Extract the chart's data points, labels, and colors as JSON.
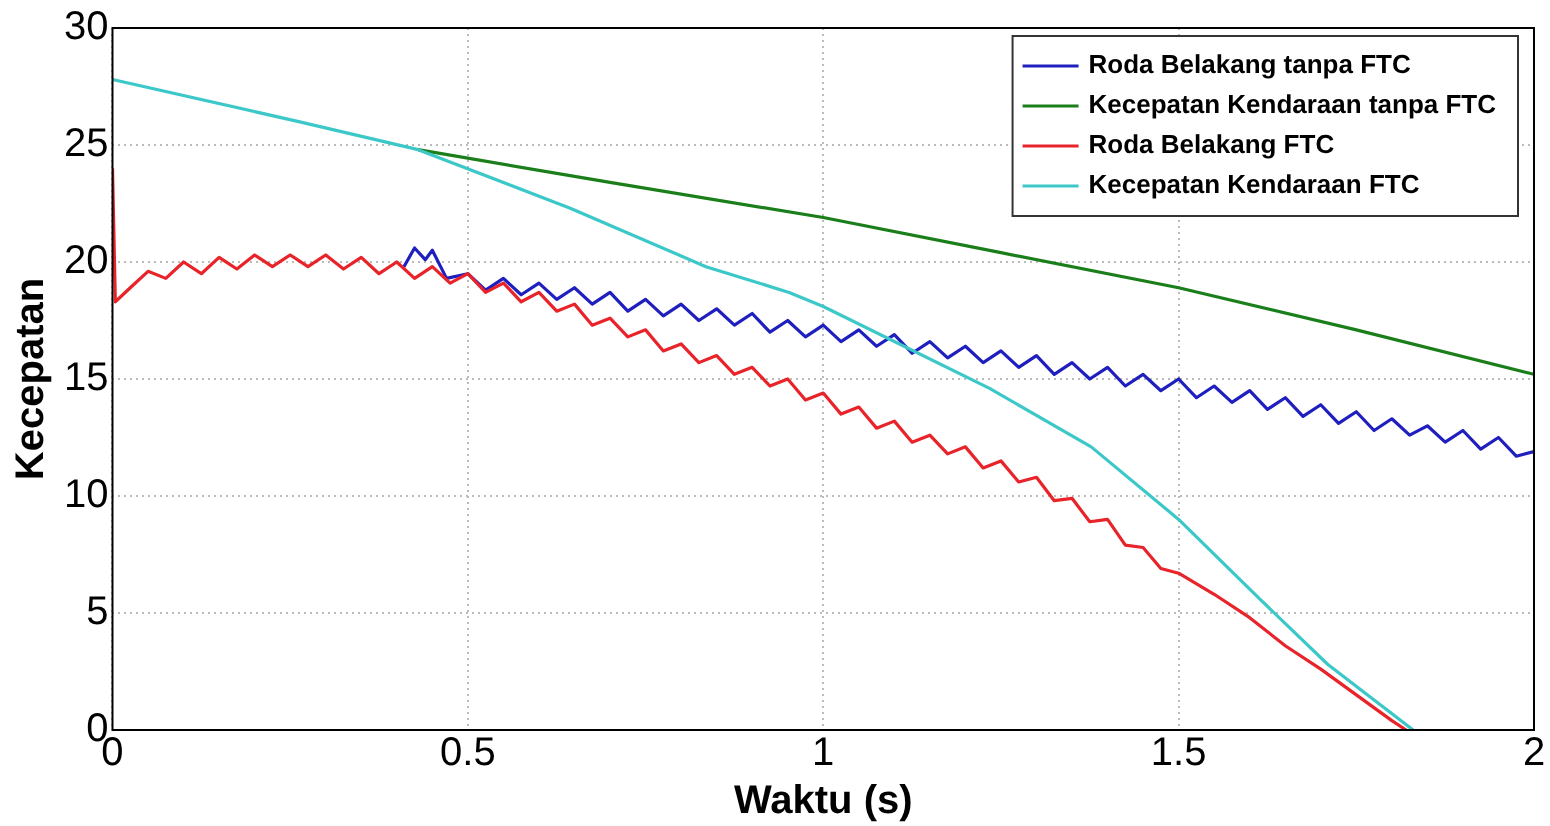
{
  "chart_data": {
    "type": "line",
    "xlabel": "Waktu (s)",
    "ylabel": "Kecepatan",
    "xlim": [
      0,
      2
    ],
    "xticks": [
      0,
      0.5,
      1,
      1.5,
      2
    ],
    "ylim": [
      0,
      30
    ],
    "yticks": [
      0,
      5,
      10,
      15,
      20,
      25,
      30
    ],
    "grid": true,
    "legend": "top right",
    "marker": "none",
    "line_style": "solid",
    "series": [
      {
        "name": "Roda Belakang tanpa FTC",
        "color": "#1f1fbf",
        "x": [
          0.41,
          0.425,
          0.44,
          0.45,
          0.47,
          0.5,
          0.525,
          0.55,
          0.575,
          0.6,
          0.625,
          0.65,
          0.675,
          0.7,
          0.725,
          0.75,
          0.775,
          0.8,
          0.825,
          0.85,
          0.875,
          0.9,
          0.925,
          0.95,
          0.975,
          1.0,
          1.025,
          1.05,
          1.075,
          1.1,
          1.125,
          1.15,
          1.175,
          1.2,
          1.225,
          1.25,
          1.275,
          1.3,
          1.325,
          1.35,
          1.375,
          1.4,
          1.425,
          1.45,
          1.475,
          1.5,
          1.525,
          1.55,
          1.575,
          1.6,
          1.625,
          1.65,
          1.675,
          1.7,
          1.725,
          1.75,
          1.775,
          1.8,
          1.825,
          1.85,
          1.875,
          1.9,
          1.925,
          1.95,
          1.975,
          2.0
        ],
        "values": [
          19.8,
          20.6,
          20.1,
          20.5,
          19.3,
          19.5,
          18.8,
          19.3,
          18.6,
          19.1,
          18.4,
          18.9,
          18.2,
          18.7,
          17.9,
          18.4,
          17.7,
          18.2,
          17.5,
          18.0,
          17.3,
          17.8,
          17.0,
          17.5,
          16.8,
          17.3,
          16.6,
          17.1,
          16.4,
          16.9,
          16.1,
          16.6,
          15.9,
          16.4,
          15.7,
          16.2,
          15.5,
          16.0,
          15.2,
          15.7,
          15.0,
          15.5,
          14.7,
          15.2,
          14.5,
          15.0,
          14.2,
          14.7,
          14.0,
          14.5,
          13.7,
          14.2,
          13.4,
          13.9,
          13.1,
          13.6,
          12.8,
          13.3,
          12.6,
          13.0,
          12.3,
          12.8,
          12.0,
          12.5,
          11.7,
          11.9
        ]
      },
      {
        "name": "Kecepatan Kendaraan tanpa FTC",
        "color": "#1a7f1a",
        "x": [
          0.43,
          0.7,
          1.0,
          1.25,
          1.5,
          1.75,
          2.0
        ],
        "values": [
          24.8,
          23.4,
          21.9,
          20.4,
          18.9,
          17.1,
          15.2
        ]
      },
      {
        "name": "Roda Belakang FTC",
        "color": "#e8232a",
        "x": [
          0,
          0.004,
          0.025,
          0.05,
          0.075,
          0.1,
          0.125,
          0.15,
          0.175,
          0.2,
          0.225,
          0.25,
          0.275,
          0.3,
          0.325,
          0.35,
          0.375,
          0.4,
          0.425,
          0.45,
          0.475,
          0.5,
          0.525,
          0.55,
          0.575,
          0.6,
          0.625,
          0.65,
          0.675,
          0.7,
          0.725,
          0.75,
          0.775,
          0.8,
          0.825,
          0.85,
          0.875,
          0.9,
          0.925,
          0.95,
          0.975,
          1.0,
          1.025,
          1.05,
          1.075,
          1.1,
          1.125,
          1.15,
          1.175,
          1.2,
          1.225,
          1.25,
          1.275,
          1.3,
          1.325,
          1.35,
          1.375,
          1.4,
          1.425,
          1.45,
          1.475,
          1.5,
          1.55,
          1.6,
          1.65,
          1.7,
          1.75,
          1.8,
          1.82
        ],
        "values": [
          24.0,
          18.3,
          18.9,
          19.6,
          19.3,
          20.0,
          19.5,
          20.2,
          19.7,
          20.3,
          19.8,
          20.3,
          19.8,
          20.3,
          19.7,
          20.2,
          19.5,
          20.0,
          19.3,
          19.8,
          19.1,
          19.5,
          18.7,
          19.1,
          18.3,
          18.7,
          17.9,
          18.2,
          17.3,
          17.6,
          16.8,
          17.1,
          16.2,
          16.5,
          15.7,
          16.0,
          15.2,
          15.5,
          14.7,
          15.0,
          14.1,
          14.4,
          13.5,
          13.8,
          12.9,
          13.2,
          12.3,
          12.6,
          11.8,
          12.1,
          11.2,
          11.5,
          10.6,
          10.8,
          9.8,
          9.9,
          8.9,
          9.0,
          7.9,
          7.8,
          6.9,
          6.7,
          5.8,
          4.8,
          3.6,
          2.6,
          1.5,
          0.4,
          0
        ]
      },
      {
        "name": "Kecepatan Kendaraan FTC",
        "color": "#3cc8c8",
        "x": [
          0,
          0.262,
          0.43,
          0.644,
          0.835,
          0.952,
          1.0,
          1.234,
          1.377,
          1.5,
          1.614,
          1.71,
          1.83
        ],
        "values": [
          27.8,
          26.0,
          24.8,
          22.3,
          19.8,
          18.7,
          18.1,
          14.6,
          12.1,
          9.0,
          5.6,
          2.8,
          0
        ]
      }
    ]
  }
}
